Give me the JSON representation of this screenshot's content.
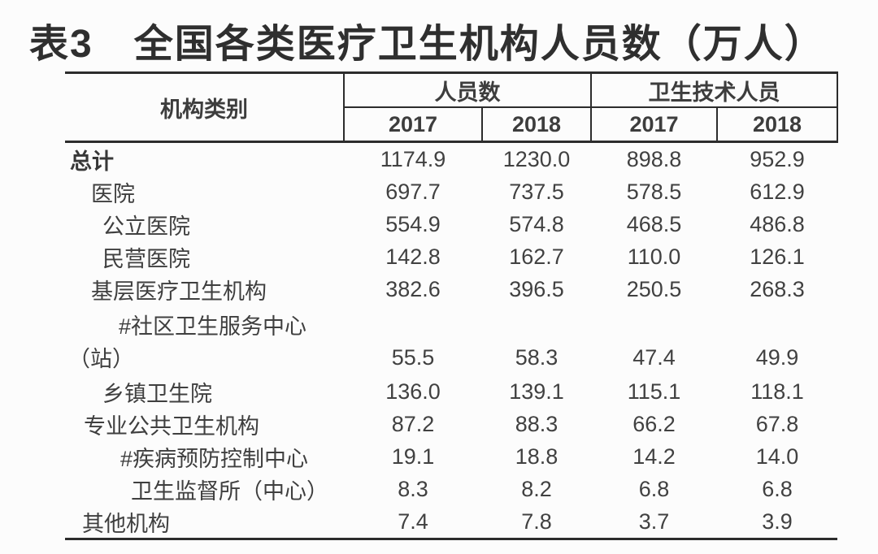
{
  "title": "表3　全国各类医疗卫生机构人员数（万人）",
  "table": {
    "category_header": "机构类别",
    "groups": [
      {
        "label": "人员数",
        "years": [
          "2017",
          "2018"
        ]
      },
      {
        "label": "卫生技术人员",
        "years": [
          "2017",
          "2018"
        ]
      }
    ],
    "unit_note": "万人",
    "rows": [
      {
        "label": "总计",
        "values": [
          "1174.9",
          "1230.0",
          "898.8",
          "952.9"
        ]
      },
      {
        "label": "医院",
        "values": [
          "697.7",
          "737.5",
          "578.5",
          "612.9"
        ]
      },
      {
        "label": "公立医院",
        "values": [
          "554.9",
          "574.8",
          "468.5",
          "486.8"
        ]
      },
      {
        "label": "民营医院",
        "values": [
          "142.8",
          "162.7",
          "110.0",
          "126.1"
        ]
      },
      {
        "label": "基层医疗卫生机构",
        "values": [
          "382.6",
          "396.5",
          "250.5",
          "268.3"
        ]
      },
      {
        "label": "#社区卫生服务中心",
        "label2": "（站）",
        "values": [
          "55.5",
          "58.3",
          "47.4",
          "49.9"
        ]
      },
      {
        "label": "乡镇卫生院",
        "values": [
          "136.0",
          "139.1",
          "115.1",
          "118.1"
        ]
      },
      {
        "label": "专业公共卫生机构",
        "values": [
          "87.2",
          "88.3",
          "66.2",
          "67.8"
        ]
      },
      {
        "label": "#疾病预防控制中心",
        "values": [
          "19.1",
          "18.8",
          "14.2",
          "14.0"
        ]
      },
      {
        "label": "卫生监督所（中心）",
        "values": [
          "8.3",
          "8.2",
          "6.8",
          "6.8"
        ]
      },
      {
        "label": "其他机构",
        "values": [
          "7.4",
          "7.8",
          "3.7",
          "3.9"
        ]
      }
    ]
  }
}
